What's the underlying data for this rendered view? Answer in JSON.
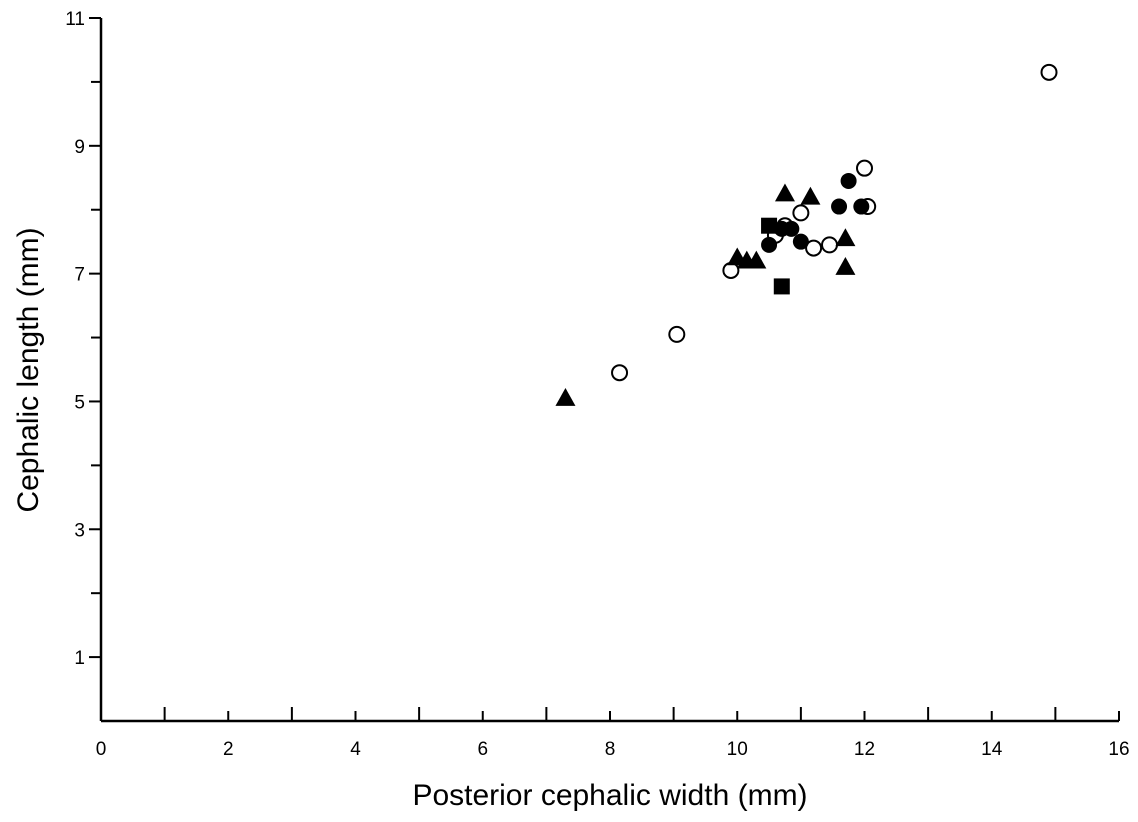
{
  "chart_data": {
    "type": "scatter",
    "title": "",
    "xlabel": "Posterior cephalic width (mm)",
    "ylabel": "Cephalic length (mm)",
    "xlim": [
      0,
      16
    ],
    "ylim": [
      0,
      11
    ],
    "x_ticks": [
      "0",
      "2",
      "4",
      "6",
      "8",
      "10",
      "12",
      "14",
      "16"
    ],
    "y_ticks": [
      "1",
      "3",
      "5",
      "7",
      "9",
      "11"
    ],
    "grid": false,
    "legend": "none",
    "series": [
      {
        "marker": "open-circle",
        "x": [
          8.15,
          9.05,
          9.9,
          10.6,
          10.75,
          11.0,
          11.2,
          11.45,
          12.0,
          12.05,
          14.9
        ],
        "y": [
          5.45,
          6.05,
          7.05,
          7.6,
          7.75,
          7.95,
          7.4,
          7.45,
          8.65,
          8.05,
          10.15
        ]
      },
      {
        "marker": "filled-circle",
        "x": [
          10.5,
          10.7,
          10.85,
          11.0,
          11.6,
          11.75,
          11.95
        ],
        "y": [
          7.45,
          7.7,
          7.7,
          7.5,
          8.05,
          8.45,
          8.05
        ]
      },
      {
        "marker": "filled-triangle",
        "x": [
          7.3,
          10.0,
          10.15,
          10.3,
          10.75,
          11.15,
          11.7,
          11.7
        ],
        "y": [
          5.05,
          7.25,
          7.2,
          7.2,
          8.25,
          8.2,
          7.55,
          7.1
        ]
      },
      {
        "marker": "filled-square",
        "x": [
          10.5,
          10.7
        ],
        "y": [
          7.75,
          6.8
        ]
      }
    ]
  }
}
